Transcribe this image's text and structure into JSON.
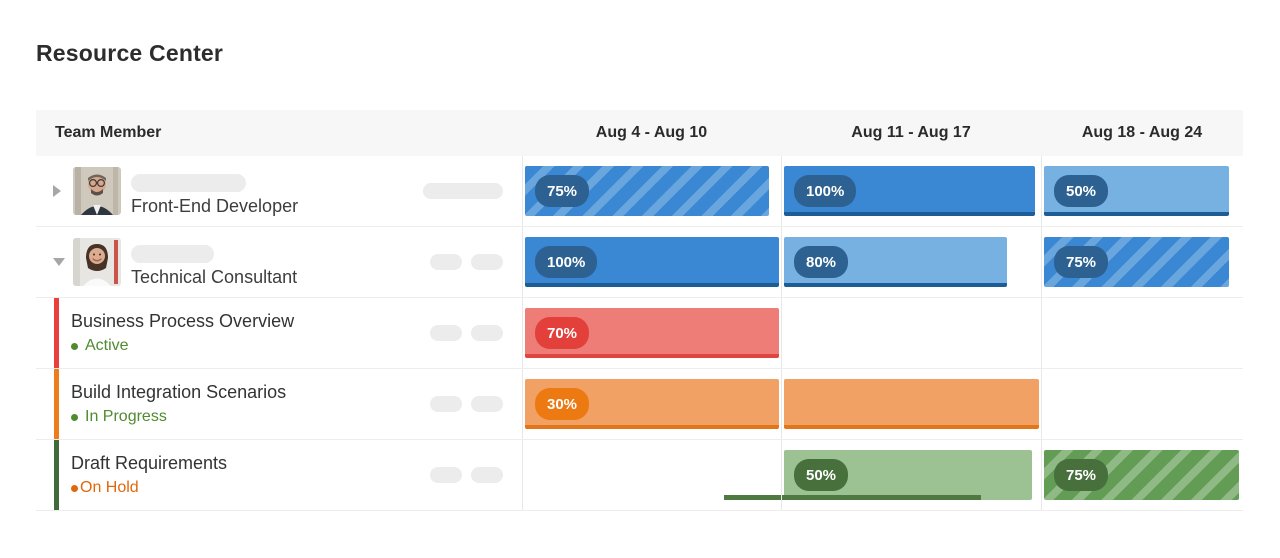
{
  "page": {
    "title": "Resource Center"
  },
  "colors": {
    "blue": "#3a87d4",
    "blue_light": "#76b1e2",
    "blue_dark": "#1d5c94",
    "blue_badge": "#2d6191",
    "red": "#ee7d78",
    "red_dark": "#e0453f",
    "red_badge": "#e4403b",
    "red_accent": "#e8413c",
    "orange": "#f2a164",
    "orange_dark": "#e2761b",
    "orange_badge": "#ec7911",
    "orange_accent": "#ee7d1c",
    "green": "#9cc294",
    "green_dark": "#4e7a41",
    "green_badge": "#48703c",
    "green_accent": "#41693a",
    "green_stripe_base": "#639c54",
    "status_green": "#4f8b2f",
    "status_orange": "#e0680b"
  },
  "header": {
    "member_col": "Team Member",
    "weeks": [
      "Aug 4 - Aug 10",
      "Aug 11 - Aug 17",
      "Aug 18 - Aug 24"
    ]
  },
  "rows": [
    {
      "type": "member",
      "role": "Front-End Developer",
      "expanded": false,
      "avatar": "man-with-glasses",
      "name_placeholder_width": 115,
      "trailing_placeholders": "wide",
      "bars": [
        {
          "week": 1,
          "value": "75%",
          "variant": "blue-striped",
          "span": 0.96
        },
        {
          "week": 2,
          "value": "100%",
          "variant": "blue-solid",
          "span": 0.985
        },
        {
          "week": 3,
          "value": "50%",
          "variant": "blue-light",
          "span": 0.94
        }
      ]
    },
    {
      "type": "member",
      "role": "Technical Consultant",
      "expanded": true,
      "avatar": "smiling-woman",
      "name_placeholder_width": 83,
      "trailing_placeholders": "pair",
      "bars": [
        {
          "week": 1,
          "value": "100%",
          "variant": "blue-solid",
          "span": 1
        },
        {
          "week": 2,
          "value": "80%",
          "variant": "blue-light",
          "span": 0.875
        },
        {
          "week": 3,
          "value": "75%",
          "variant": "blue-striped",
          "span": 0.94
        }
      ]
    },
    {
      "type": "task",
      "title": "Business Process Overview",
      "status": "Active",
      "status_variant": "green",
      "accent": "red",
      "trailing_placeholders": "pair",
      "bars": [
        {
          "week": 1,
          "value": "70%",
          "variant": "red",
          "span": 1
        }
      ]
    },
    {
      "type": "task",
      "title": "Build Integration Scenarios",
      "status": "In Progress",
      "status_variant": "green",
      "accent": "orange",
      "trailing_placeholders": "pair",
      "bars": [
        {
          "week": 1,
          "value": "30%",
          "variant": "orange",
          "span": 1
        },
        {
          "week": 2,
          "value": "",
          "variant": "orange",
          "span": 1
        }
      ]
    },
    {
      "type": "task",
      "title": "Draft Requirements",
      "status": "On Hold",
      "status_variant": "orange",
      "accent": "green",
      "trailing_placeholders": "pair",
      "bars": [
        {
          "week": 2,
          "value": "50%",
          "variant": "green-solid",
          "span": 0.973
        },
        {
          "week": 3,
          "value": "75%",
          "variant": "green-striped",
          "span": 0.99
        }
      ],
      "progress_segments": [
        {
          "week": 1,
          "from": 0.78,
          "to": 1
        },
        {
          "week": 2,
          "from": 0,
          "to": 0.77
        }
      ]
    }
  ]
}
